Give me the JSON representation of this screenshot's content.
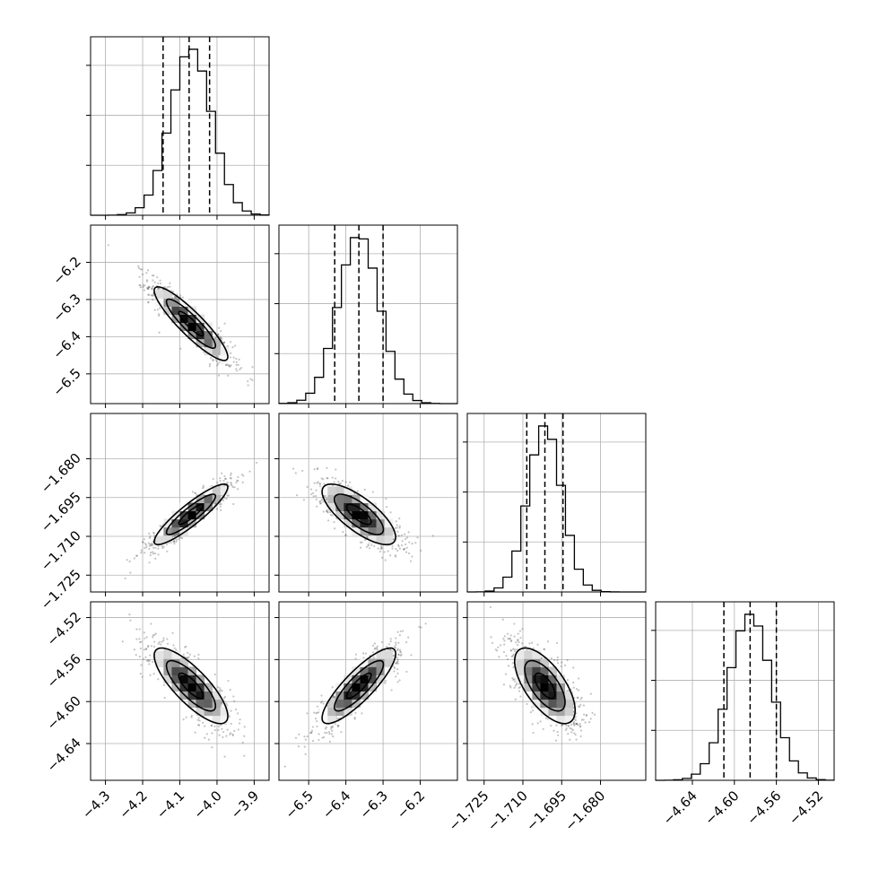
{
  "chart_data": {
    "type": "corner",
    "grid": true,
    "parameters": [
      {
        "name": "",
        "range": [
          -4.34,
          -3.86
        ],
        "ticks": [
          "-4.3",
          "-4.2",
          "-4.1",
          "-4.0",
          "-3.9"
        ],
        "tick_values": [
          -4.3,
          -4.2,
          -4.1,
          -4.0,
          -3.9
        ],
        "mean": -4.07,
        "sigma": 0.055,
        "quantiles": [
          -4.145,
          -4.075,
          -4.02
        ],
        "hist_peak": 0.93
      },
      {
        "name": "",
        "range": [
          -6.58,
          -6.1
        ],
        "ticks": [
          "-6.5",
          "-6.4",
          "-6.3",
          "-6.2"
        ],
        "tick_values": [
          -6.5,
          -6.4,
          -6.3,
          -6.2
        ],
        "mean": -6.365,
        "sigma": 0.055,
        "quantiles": [
          -6.43,
          -6.365,
          -6.3
        ],
        "hist_peak": 0.93
      },
      {
        "name": "",
        "range": [
          -1.7315,
          -1.6625
        ],
        "ticks": [
          "-1.725",
          "-1.710",
          "-1.695",
          "-1.680"
        ],
        "tick_values": [
          -1.725,
          -1.71,
          -1.695,
          -1.68
        ],
        "mean": -1.7015,
        "sigma": 0.0065,
        "quantiles": [
          -1.7085,
          -1.7015,
          -1.6945
        ],
        "hist_peak": 0.93
      },
      {
        "name": "",
        "range": [
          -4.675,
          -4.505
        ],
        "ticks": [
          "-4.64",
          "-4.60",
          "-4.56",
          "-4.52"
        ],
        "tick_values": [
          -4.64,
          -4.6,
          -4.56,
          -4.52
        ],
        "mean": -4.585,
        "sigma": 0.02,
        "quantiles": [
          -4.61,
          -4.585,
          -4.56
        ],
        "hist_peak": 0.93
      }
    ],
    "correlations": [
      {
        "pair": [
          0,
          1
        ],
        "rho": -0.9
      },
      {
        "pair": [
          0,
          2
        ],
        "rho": 0.9
      },
      {
        "pair": [
          1,
          2
        ],
        "rho": -0.75
      },
      {
        "pair": [
          0,
          3
        ],
        "rho": -0.8
      },
      {
        "pair": [
          1,
          3
        ],
        "rho": 0.85
      },
      {
        "pair": [
          2,
          3
        ],
        "rho": -0.65
      }
    ],
    "contour_levels_sigma": [
      0.6,
      1.2,
      1.8
    ],
    "colors": {
      "line": "#000000",
      "grid": "#b0b0b0",
      "points": "#555555"
    }
  }
}
